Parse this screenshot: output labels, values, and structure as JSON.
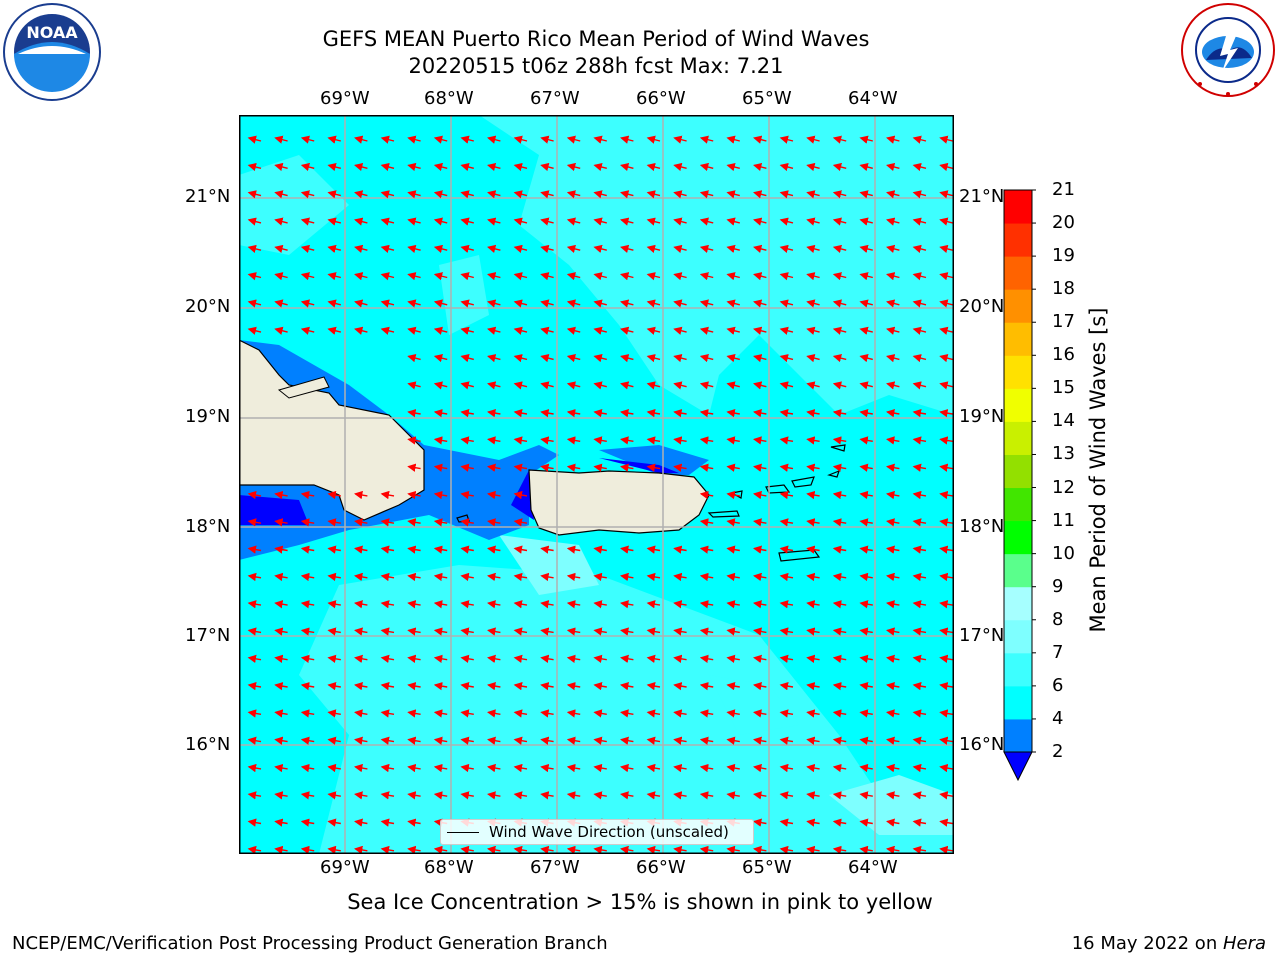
{
  "title": {
    "line1": "GEFS MEAN Puerto Rico Mean Period of Wind Waves",
    "line2": "20220515 t06z 288h fcst   Max: 7.21"
  },
  "logos": {
    "left": "noaa-logo",
    "right": "national-weather-service-logo"
  },
  "map": {
    "lon_ticks_top": [
      "69°W",
      "68°W",
      "67°W",
      "66°W",
      "65°W",
      "64°W"
    ],
    "lon_ticks_bottom": [
      "69°W",
      "68°W",
      "67°W",
      "66°W",
      "65°W",
      "64°W"
    ],
    "lat_ticks_left": [
      "21°N",
      "20°N",
      "19°N",
      "18°N",
      "17°N",
      "16°N"
    ],
    "lat_ticks_right": [
      "21°N",
      "20°N",
      "19°N",
      "18°N",
      "17°N",
      "16°N"
    ],
    "lon_range": [
      -70,
      -63.25
    ],
    "lat_range": [
      15.05,
      21.75
    ],
    "grid": true,
    "arrow_color": "#ff0000",
    "land_color": "#efeddc",
    "legend": {
      "label": "Wind Wave Direction (unscaled)"
    }
  },
  "colorbar": {
    "label": "Mean Period of Wind Waves [s]",
    "ticks": [
      "21",
      "20",
      "19",
      "18",
      "17",
      "16",
      "15",
      "14",
      "13",
      "12",
      "11",
      "10",
      "9",
      "8",
      "7",
      "6",
      "4",
      "2"
    ],
    "levels": [
      2,
      4,
      6,
      7,
      8,
      9,
      10,
      11,
      12,
      13,
      14,
      15,
      16,
      17,
      18,
      19,
      20,
      21
    ],
    "colors": [
      "#0000ff",
      "#0080ff",
      "#00ffff",
      "#3dffff",
      "#7effff",
      "#a6ffff",
      "#5aff8c",
      "#00ff00",
      "#41e600",
      "#93e000",
      "#c9f000",
      "#f0ff00",
      "#ffe100",
      "#ffbd00",
      "#ff9000",
      "#ff6300",
      "#ff3000",
      "#ff0000"
    ]
  },
  "chart_data": {
    "type": "heatmap",
    "title": "GEFS MEAN Puerto Rico Mean Period of Wind Waves",
    "subtitle": "20220515 t06z 288h fcst   Max: 7.21",
    "max_value": 7.21,
    "units": "s",
    "xlim": [
      -70,
      -63.25
    ],
    "ylim": [
      15.05,
      21.75
    ],
    "grid": true,
    "legend_placement": "bottom-center"
  },
  "caption": "Sea Ice Concentration > 15% is shown in pink to yellow",
  "footer": {
    "left": "NCEP/EMC/Verification Post Processing Product Generation Branch",
    "right_date": "16 May 2022 on ",
    "right_host": "Hera"
  }
}
